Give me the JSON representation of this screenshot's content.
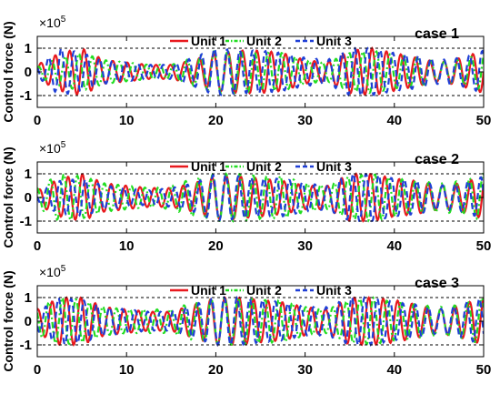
{
  "figure": {
    "exponent": {
      "base": "×10",
      "power": "5"
    }
  },
  "chart_data": [
    {
      "type": "line",
      "panel_label": "case 1",
      "ylabel": "Control force (N)",
      "xlim": [
        0,
        50
      ],
      "ylim": [
        -1.5,
        1.5
      ],
      "x_ticks": [
        "0",
        "10",
        "20",
        "30",
        "40",
        "50"
      ],
      "y_ticks": [
        "1",
        "0",
        "-1"
      ],
      "y_scale_multiplier": "×10^5",
      "reference_lines": [
        1,
        -1
      ],
      "legend": "top",
      "series": [
        {
          "name": "Unit 1",
          "color": "#e8191e",
          "style": "solid",
          "x": [
            0,
            2.5,
            5,
            7.5,
            10,
            12.5,
            15,
            17.5,
            20,
            22.5,
            25,
            27.5,
            30,
            32.5,
            35,
            37.5,
            40,
            42.5,
            45,
            47.5,
            50
          ],
          "amplitude": [
            0.3,
            0.8,
            1.0,
            0.5,
            0.4,
            0.3,
            0.3,
            0.5,
            0.8,
            0.9,
            0.9,
            0.8,
            0.5,
            0.4,
            0.9,
            1.0,
            0.8,
            0.6,
            0.4,
            0.6,
            0.9
          ]
        },
        {
          "name": "Unit 2",
          "color": "#22dd22",
          "style": "dashdot",
          "x": [
            0,
            2.5,
            5,
            7.5,
            10,
            12.5,
            15,
            17.5,
            20,
            22.5,
            25,
            27.5,
            30,
            32.5,
            35,
            37.5,
            40,
            42.5,
            45,
            47.5,
            50
          ],
          "amplitude": [
            0.2,
            0.6,
            0.8,
            0.5,
            0.4,
            0.3,
            0.3,
            0.6,
            0.9,
            0.9,
            0.8,
            0.8,
            0.5,
            0.4,
            0.8,
            0.9,
            0.7,
            0.6,
            0.4,
            0.5,
            0.8
          ]
        },
        {
          "name": "Unit 3",
          "color": "#1f3fd6",
          "style": "dashed",
          "x": [
            0,
            2.5,
            5,
            7.5,
            10,
            12.5,
            15,
            17.5,
            20,
            22.5,
            25,
            27.5,
            30,
            32.5,
            35,
            37.5,
            40,
            42.5,
            45,
            47.5,
            50
          ],
          "amplitude": [
            0.2,
            1.0,
            0.8,
            0.5,
            0.4,
            0.3,
            0.3,
            0.6,
            1.0,
            0.9,
            0.9,
            0.8,
            0.6,
            0.5,
            1.0,
            1.0,
            0.8,
            0.7,
            0.5,
            0.6,
            0.9
          ]
        }
      ]
    },
    {
      "type": "line",
      "panel_label": "case 2",
      "ylabel": "Control force (N)",
      "xlim": [
        0,
        50
      ],
      "ylim": [
        -1.5,
        1.5
      ],
      "x_ticks": [
        "0",
        "10",
        "20",
        "30",
        "40",
        "50"
      ],
      "y_ticks": [
        "1",
        "0",
        "-1"
      ],
      "y_scale_multiplier": "×10^5",
      "reference_lines": [
        1,
        -1
      ],
      "legend": "top",
      "series": [
        {
          "name": "Unit 1",
          "color": "#e8191e",
          "style": "solid",
          "x": [
            0,
            2.5,
            5,
            7.5,
            10,
            12.5,
            15,
            17.5,
            20,
            22.5,
            25,
            27.5,
            30,
            32.5,
            35,
            37.5,
            40,
            42.5,
            45,
            47.5,
            50
          ],
          "amplitude": [
            0.3,
            0.8,
            1.0,
            0.6,
            0.5,
            0.4,
            0.4,
            0.6,
            0.9,
            0.9,
            0.8,
            0.7,
            0.5,
            0.5,
            1.0,
            1.0,
            0.8,
            0.7,
            0.5,
            0.6,
            0.9
          ]
        },
        {
          "name": "Unit 2",
          "color": "#22dd22",
          "style": "dashdot",
          "x": [
            0,
            2.5,
            5,
            7.5,
            10,
            12.5,
            15,
            17.5,
            20,
            22.5,
            25,
            27.5,
            30,
            32.5,
            35,
            37.5,
            40,
            42.5,
            45,
            47.5,
            50
          ],
          "amplitude": [
            0.4,
            1.0,
            0.9,
            0.6,
            0.5,
            0.4,
            0.5,
            0.8,
            1.0,
            1.0,
            0.9,
            0.9,
            0.6,
            0.5,
            0.9,
            1.0,
            0.8,
            0.7,
            0.6,
            0.7,
            1.0
          ]
        },
        {
          "name": "Unit 3",
          "color": "#1f3fd6",
          "style": "dashed",
          "x": [
            0,
            2.5,
            5,
            7.5,
            10,
            12.5,
            15,
            17.5,
            20,
            22.5,
            25,
            27.5,
            30,
            32.5,
            35,
            37.5,
            40,
            42.5,
            45,
            47.5,
            50
          ],
          "amplitude": [
            0.2,
            0.7,
            0.8,
            0.5,
            0.4,
            0.3,
            0.4,
            0.6,
            1.0,
            0.9,
            0.8,
            0.8,
            0.6,
            0.5,
            1.0,
            1.0,
            0.8,
            0.7,
            0.5,
            0.6,
            0.9
          ]
        }
      ]
    },
    {
      "type": "line",
      "panel_label": "case 3",
      "ylabel": "Control force (N)",
      "xlim": [
        0,
        50
      ],
      "ylim": [
        -1.5,
        1.5
      ],
      "x_ticks": [
        "0",
        "10",
        "20",
        "30",
        "40",
        "50"
      ],
      "y_ticks": [
        "1",
        "0",
        "-1"
      ],
      "y_scale_multiplier": "×10^5",
      "reference_lines": [
        1,
        -1
      ],
      "legend": "top",
      "series": [
        {
          "name": "Unit 1",
          "color": "#e8191e",
          "style": "solid",
          "x": [
            0,
            2.5,
            5,
            7.5,
            10,
            12.5,
            15,
            17.5,
            20,
            22.5,
            25,
            27.5,
            30,
            32.5,
            35,
            37.5,
            40,
            42.5,
            45,
            47.5,
            50
          ],
          "amplitude": [
            0.5,
            1.0,
            1.0,
            0.6,
            0.5,
            0.4,
            0.4,
            0.7,
            1.0,
            1.0,
            0.9,
            0.8,
            0.6,
            0.5,
            1.0,
            1.0,
            0.9,
            0.7,
            0.5,
            0.7,
            1.0
          ]
        },
        {
          "name": "Unit 2",
          "color": "#22dd22",
          "style": "dashdot",
          "x": [
            0,
            2.5,
            5,
            7.5,
            10,
            12.5,
            15,
            17.5,
            20,
            22.5,
            25,
            27.5,
            30,
            32.5,
            35,
            37.5,
            40,
            42.5,
            45,
            47.5,
            50
          ],
          "amplitude": [
            0.6,
            1.0,
            0.9,
            0.6,
            0.5,
            0.5,
            0.5,
            0.8,
            1.0,
            1.0,
            0.9,
            0.9,
            0.6,
            0.5,
            0.9,
            1.0,
            0.8,
            0.7,
            0.6,
            0.7,
            1.0
          ]
        },
        {
          "name": "Unit 3",
          "color": "#1f3fd6",
          "style": "dashed",
          "x": [
            0,
            2.5,
            5,
            7.5,
            10,
            12.5,
            15,
            17.5,
            20,
            22.5,
            25,
            27.5,
            30,
            32.5,
            35,
            37.5,
            40,
            42.5,
            45,
            47.5,
            50
          ],
          "amplitude": [
            0.4,
            1.0,
            0.9,
            0.6,
            0.5,
            0.4,
            0.4,
            0.7,
            1.0,
            1.0,
            0.9,
            0.8,
            0.6,
            0.6,
            1.0,
            1.0,
            0.8,
            0.7,
            0.5,
            0.7,
            1.0
          ]
        }
      ]
    }
  ]
}
